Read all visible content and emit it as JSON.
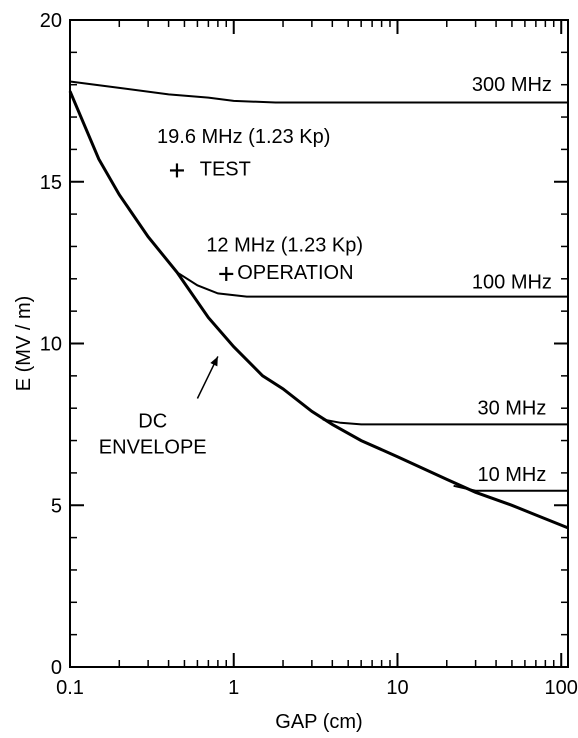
{
  "chart_data": {
    "type": "line",
    "title": "",
    "xlabel": "GAP  (cm)",
    "ylabel": "E  (MV / m)",
    "xscale": "log",
    "xlim": [
      0.1,
      110
    ],
    "ylim": [
      0,
      20
    ],
    "grid": false,
    "x_ticks": [
      {
        "value": 0.1,
        "label": "0.1"
      },
      {
        "value": 1,
        "label": "1"
      },
      {
        "value": 10,
        "label": "10"
      },
      {
        "value": 100,
        "label": "100"
      }
    ],
    "y_ticks": [
      {
        "value": 0,
        "label": "0"
      },
      {
        "value": 5,
        "label": "5"
      },
      {
        "value": 10,
        "label": "10"
      },
      {
        "value": 15,
        "label": "15"
      },
      {
        "value": 20,
        "label": "20"
      }
    ],
    "series": [
      {
        "name": "DC ENVELOPE",
        "x": [
          0.1,
          0.15,
          0.2,
          0.3,
          0.45,
          0.7,
          1,
          1.5,
          2,
          3,
          4,
          6,
          10,
          20,
          30,
          50,
          70,
          110
        ],
        "y": [
          17.8,
          15.7,
          14.6,
          13.3,
          12.2,
          10.8,
          9.9,
          9.0,
          8.6,
          7.9,
          7.5,
          7.0,
          6.5,
          5.8,
          5.4,
          5.0,
          4.7,
          4.3
        ]
      },
      {
        "name": "300 MHz",
        "x": [
          0.1,
          0.2,
          0.4,
          0.7,
          1,
          1.8,
          3,
          10,
          110
        ],
        "y": [
          18.1,
          17.9,
          17.7,
          17.6,
          17.5,
          17.45,
          17.45,
          17.45,
          17.45
        ]
      },
      {
        "name": "100 MHz",
        "x": [
          0.45,
          0.6,
          0.8,
          1.2,
          2,
          5,
          110
        ],
        "y": [
          12.2,
          11.8,
          11.55,
          11.45,
          11.45,
          11.45,
          11.45
        ]
      },
      {
        "name": "30 MHz",
        "x": [
          3.5,
          4.5,
          6,
          10,
          110
        ],
        "y": [
          7.65,
          7.55,
          7.5,
          7.5,
          7.5
        ]
      },
      {
        "name": "10 MHz",
        "x": [
          22,
          30,
          50,
          110
        ],
        "y": [
          5.6,
          5.45,
          5.45,
          5.45
        ]
      }
    ],
    "points": [
      {
        "name": "TEST",
        "x": 0.45,
        "y": 15.35,
        "marker": "+"
      },
      {
        "name": "OPERATION",
        "x": 0.9,
        "y": 12.15,
        "marker": "+"
      }
    ],
    "annotations": [
      {
        "text": "300 MHz",
        "x": 50,
        "y": 17.8
      },
      {
        "text": "19.6 MHz   (1.23 Kp)",
        "x": 0.34,
        "y": 16.2
      },
      {
        "text": "TEST",
        "x": 0.62,
        "y": 15.2
      },
      {
        "text": "12 MHz   (1.23 Kp)",
        "x": 0.68,
        "y": 12.85
      },
      {
        "text": "OPERATION",
        "x": 1.05,
        "y": 12.0
      },
      {
        "text": "100 MHz",
        "x": 50,
        "y": 11.7
      },
      {
        "text": "DC",
        "x": 0.32,
        "y": 7.4
      },
      {
        "text": "ENVELOPE",
        "x": 0.32,
        "y": 6.6
      },
      {
        "text": "30 MHz",
        "x": 50,
        "y": 7.8
      },
      {
        "text": "10 MHz",
        "x": 50,
        "y": 5.75
      }
    ],
    "pointer": {
      "label": "DC ENVELOPE",
      "from": [
        0.6,
        8.3
      ],
      "to": [
        0.8,
        9.6
      ]
    }
  }
}
